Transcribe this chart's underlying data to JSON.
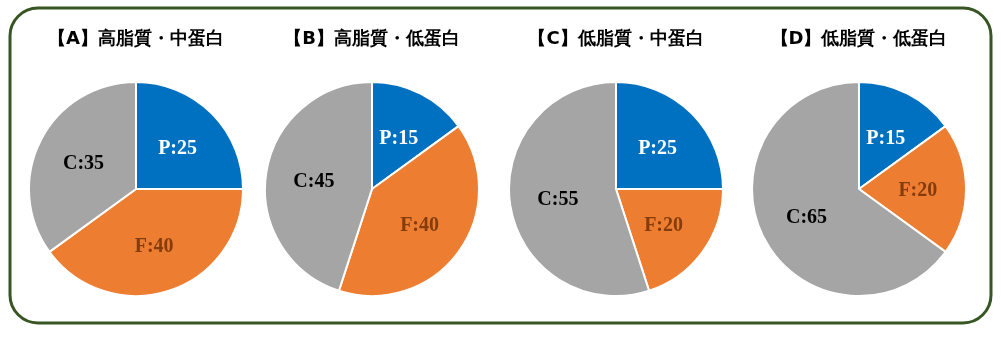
{
  "chart_data": [
    {
      "type": "pie",
      "title": "【A】高脂質・中蛋白",
      "categories": [
        null,
        null,
        null
      ],
      "values": [
        25,
        40,
        35
      ],
      "colors": [
        "#0070c0",
        "#ed7d31",
        "#a5a5a5"
      ],
      "value_labels": [
        "P:25",
        "F:40",
        "C:35"
      ]
    },
    {
      "type": "pie",
      "title": "【B】高脂質・低蛋白",
      "categories": [
        null,
        null,
        null
      ],
      "values": [
        15,
        40,
        45
      ],
      "colors": [
        "#0070c0",
        "#ed7d31",
        "#a5a5a5"
      ],
      "value_labels": [
        "P:15",
        "F:40",
        "C:45"
      ]
    },
    {
      "type": "pie",
      "title": "【C】低脂質・中蛋白",
      "categories": [
        null,
        null,
        null
      ],
      "values": [
        25,
        20,
        55
      ],
      "colors": [
        "#0070c0",
        "#ed7d31",
        "#a5a5a5"
      ],
      "value_labels": [
        "P:25",
        "F:20",
        "C:55"
      ]
    },
    {
      "type": "pie",
      "title": "【D】低脂質・低蛋白",
      "categories": [
        null,
        null,
        null
      ],
      "values": [
        15,
        20,
        65
      ],
      "colors": [
        "#0070c0",
        "#ed7d31",
        "#a5a5a5"
      ],
      "value_labels": [
        "P:15",
        "F:20",
        "C:65"
      ]
    }
  ]
}
